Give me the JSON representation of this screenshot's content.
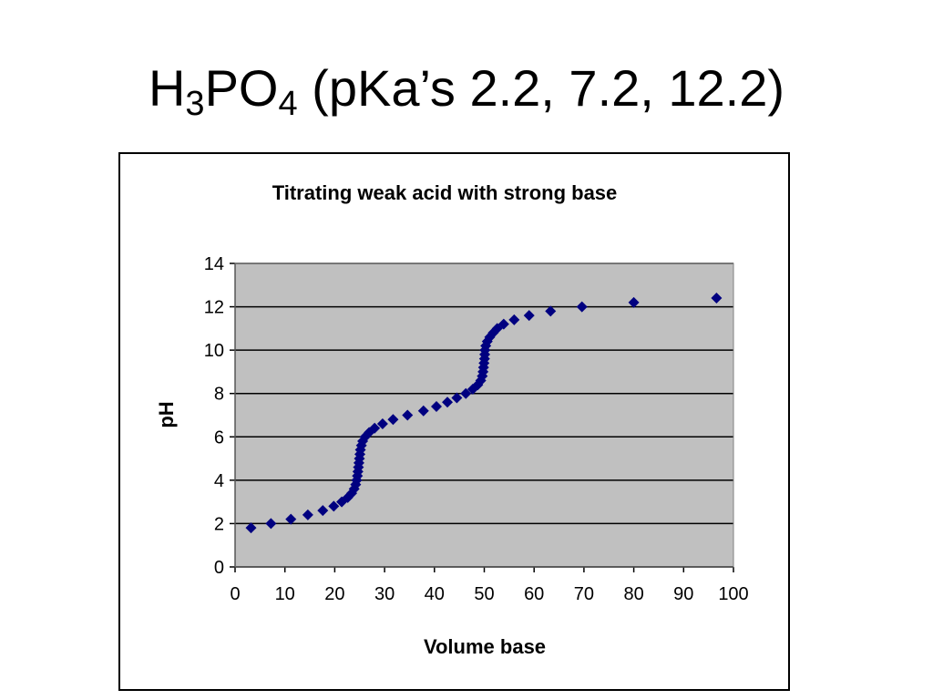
{
  "slide": {
    "title_main": "H",
    "title_sub1": "3",
    "title_mid": "PO",
    "title_sub2": "4",
    "title_rest": " (pKa’s 2.2, 7.2, 12.2)"
  },
  "colors": {
    "background": "#ffffff",
    "plot_area": "#c0c0c0",
    "gridline": "#000000",
    "marker": "#000080"
  },
  "chart_data": {
    "type": "scatter",
    "title": "Titrating weak acid with strong base",
    "xlabel": "Volume base",
    "ylabel": "pH",
    "xlim": [
      0,
      100
    ],
    "ylim": [
      0,
      14
    ],
    "xticks": [
      "0",
      "10",
      "20",
      "30",
      "40",
      "50",
      "60",
      "70",
      "80",
      "90",
      "100"
    ],
    "yticks": [
      "0",
      "2",
      "4",
      "6",
      "8",
      "10",
      "12",
      "14"
    ],
    "grid": "horizontal major gridlines",
    "legend": "none",
    "marker": "diamond",
    "points": [
      [
        3.2,
        1.8
      ],
      [
        7.2,
        2.0
      ],
      [
        11.2,
        2.2
      ],
      [
        14.6,
        2.4
      ],
      [
        17.6,
        2.6
      ],
      [
        19.8,
        2.8
      ],
      [
        21.4,
        3.0
      ],
      [
        22.6,
        3.2
      ],
      [
        23.4,
        3.4
      ],
      [
        23.9,
        3.6
      ],
      [
        24.2,
        3.8
      ],
      [
        24.4,
        4.0
      ],
      [
        24.55,
        4.2
      ],
      [
        24.65,
        4.4
      ],
      [
        24.75,
        4.6
      ],
      [
        24.85,
        4.8
      ],
      [
        24.95,
        5.0
      ],
      [
        25.05,
        5.2
      ],
      [
        25.15,
        5.4
      ],
      [
        25.35,
        5.6
      ],
      [
        25.6,
        5.8
      ],
      [
        26.1,
        6.0
      ],
      [
        26.9,
        6.2
      ],
      [
        28.0,
        6.4
      ],
      [
        29.6,
        6.6
      ],
      [
        31.7,
        6.8
      ],
      [
        34.6,
        7.0
      ],
      [
        37.8,
        7.2
      ],
      [
        40.4,
        7.4
      ],
      [
        42.6,
        7.6
      ],
      [
        44.5,
        7.8
      ],
      [
        46.3,
        8.0
      ],
      [
        47.7,
        8.2
      ],
      [
        48.7,
        8.4
      ],
      [
        49.3,
        8.6
      ],
      [
        49.6,
        8.8
      ],
      [
        49.75,
        9.0
      ],
      [
        49.85,
        9.2
      ],
      [
        49.95,
        9.4
      ],
      [
        50.05,
        9.6
      ],
      [
        50.1,
        9.8
      ],
      [
        50.15,
        10.0
      ],
      [
        50.3,
        10.2
      ],
      [
        50.6,
        10.4
      ],
      [
        51.1,
        10.6
      ],
      [
        51.8,
        10.8
      ],
      [
        52.6,
        11.0
      ],
      [
        53.9,
        11.2
      ],
      [
        56.0,
        11.4
      ],
      [
        59.0,
        11.6
      ],
      [
        63.3,
        11.8
      ],
      [
        69.6,
        12.0
      ],
      [
        80.0,
        12.2
      ],
      [
        96.6,
        12.4
      ]
    ]
  }
}
